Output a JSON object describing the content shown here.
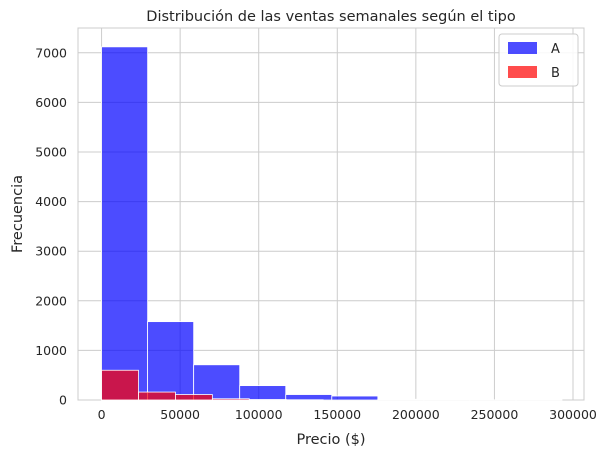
{
  "chart_data": {
    "type": "bar",
    "title": "Distribución de las ventas semanales según el tipo",
    "xlabel": "Precio ($)",
    "ylabel": "Frecuencia",
    "xlim": [
      -15000,
      307000
    ],
    "ylim": [
      0,
      7500
    ],
    "x_ticks": [
      0,
      50000,
      100000,
      150000,
      200000,
      250000,
      300000
    ],
    "y_ticks": [
      0,
      1000,
      2000,
      3000,
      4000,
      5000,
      6000,
      7000
    ],
    "grid": true,
    "legend_position": "top-right",
    "series": [
      {
        "name": "A",
        "color": "#0000ff",
        "opacity": 0.7,
        "bins": [
          {
            "x0": 0,
            "x1": 29300,
            "value": 7120
          },
          {
            "x0": 29300,
            "x1": 58600,
            "value": 1580
          },
          {
            "x0": 58600,
            "x1": 87900,
            "value": 710
          },
          {
            "x0": 87900,
            "x1": 117200,
            "value": 290
          },
          {
            "x0": 117200,
            "x1": 146500,
            "value": 110
          },
          {
            "x0": 146500,
            "x1": 175800,
            "value": 80
          },
          {
            "x0": 175800,
            "x1": 205100,
            "value": 15
          },
          {
            "x0": 205100,
            "x1": 234400,
            "value": 8
          },
          {
            "x0": 234400,
            "x1": 263700,
            "value": 4
          },
          {
            "x0": 263700,
            "x1": 293000,
            "value": 3
          }
        ]
      },
      {
        "name": "B",
        "color": "#ff0000",
        "opacity": 0.7,
        "bins": [
          {
            "x0": 0,
            "x1": 23500,
            "value": 600
          },
          {
            "x0": 23500,
            "x1": 47000,
            "value": 160
          },
          {
            "x0": 47000,
            "x1": 70500,
            "value": 110
          },
          {
            "x0": 70500,
            "x1": 94000,
            "value": 25
          },
          {
            "x0": 94000,
            "x1": 117500,
            "value": 10
          },
          {
            "x0": 117500,
            "x1": 141000,
            "value": 5
          }
        ]
      }
    ]
  }
}
